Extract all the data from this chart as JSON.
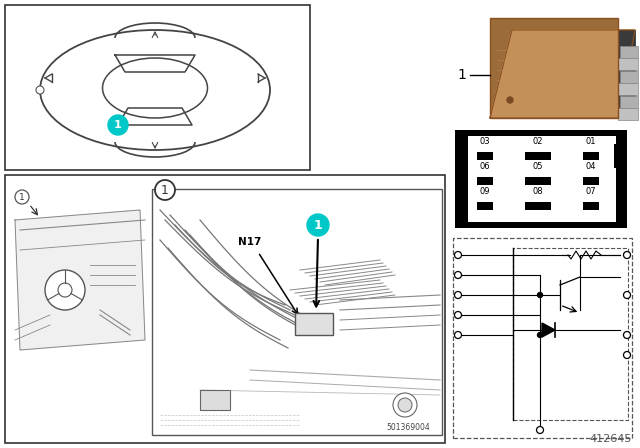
{
  "bg_color": "#ffffff",
  "border_color": "#000000",
  "cyan_color": "#00c8c8",
  "relay_brown": "#9B6B3A",
  "relay_shadow": "#7A4A20",
  "fig_width": 6.4,
  "fig_height": 4.48,
  "dpi": 100,
  "part_number": "412645",
  "diagram_code": "501369004",
  "pin_labels": [
    "03",
    "02",
    "01",
    "06",
    "05",
    "04",
    "09",
    "08",
    "07"
  ]
}
